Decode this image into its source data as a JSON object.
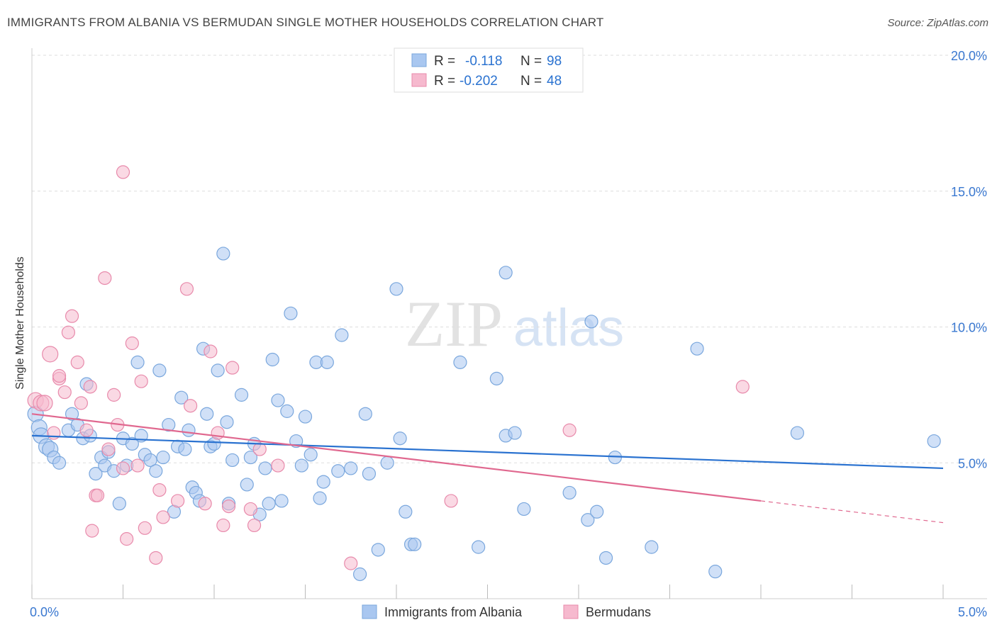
{
  "title": "IMMIGRANTS FROM ALBANIA VS BERMUDAN SINGLE MOTHER HOUSEHOLDS CORRELATION CHART",
  "source": "Source: ZipAtlas.com",
  "watermark": {
    "zip": "ZIP",
    "atlas": "atlas"
  },
  "legend_box": [
    {
      "r_label": "R =",
      "r_value": "-0.118",
      "n_label": "N =",
      "n_value": "98"
    },
    {
      "r_label": "R =",
      "r_value": "-0.202",
      "n_label": "N =",
      "n_value": "48"
    }
  ],
  "colors": {
    "blue_fill": "#a9c7f0",
    "blue_stroke": "#7aa7dd",
    "blue_line": "#2a72d0",
    "pink_fill": "#f6b9ce",
    "pink_stroke": "#e88aab",
    "pink_line": "#e0688f",
    "tick_text": "#3a78d0",
    "grid": "#dddddd"
  },
  "chart_data": {
    "type": "scatter",
    "title": "IMMIGRANTS FROM ALBANIA VS BERMUDAN SINGLE MOTHER HOUSEHOLDS CORRELATION CHART",
    "xlabel": "",
    "ylabel": "Single Mother Households",
    "xlim": [
      0,
      5
    ],
    "ylim": [
      0,
      20
    ],
    "x_tick_labels": [
      "0.0%",
      "5.0%"
    ],
    "y_ticks": [
      5,
      10,
      15,
      20
    ],
    "y_tick_labels": [
      "5.0%",
      "10.0%",
      "15.0%",
      "20.0%"
    ],
    "grid": "horizontal dashed",
    "legend_position": "bottom-center",
    "series": [
      {
        "name": "Immigrants from Albania",
        "r": -0.118,
        "n": 98,
        "trend": {
          "x": [
            0,
            5
          ],
          "y": [
            6.0,
            4.8
          ]
        },
        "points": [
          [
            0.02,
            6.8
          ],
          [
            0.04,
            6.3
          ],
          [
            0.05,
            6.0
          ],
          [
            0.08,
            5.6
          ],
          [
            0.1,
            5.5
          ],
          [
            0.12,
            5.2
          ],
          [
            0.15,
            5.0
          ],
          [
            0.2,
            6.2
          ],
          [
            0.22,
            6.8
          ],
          [
            0.25,
            6.4
          ],
          [
            0.28,
            5.9
          ],
          [
            0.3,
            7.9
          ],
          [
            0.32,
            6.0
          ],
          [
            0.35,
            4.6
          ],
          [
            0.38,
            5.2
          ],
          [
            0.4,
            4.9
          ],
          [
            0.42,
            5.4
          ],
          [
            0.45,
            4.7
          ],
          [
            0.48,
            3.5
          ],
          [
            0.5,
            5.9
          ],
          [
            0.52,
            4.9
          ],
          [
            0.55,
            5.7
          ],
          [
            0.58,
            8.7
          ],
          [
            0.6,
            6.0
          ],
          [
            0.62,
            5.3
          ],
          [
            0.65,
            5.1
          ],
          [
            0.68,
            4.7
          ],
          [
            0.7,
            8.4
          ],
          [
            0.72,
            5.2
          ],
          [
            0.75,
            6.4
          ],
          [
            0.78,
            3.2
          ],
          [
            0.8,
            5.6
          ],
          [
            0.82,
            7.4
          ],
          [
            0.84,
            5.5
          ],
          [
            0.86,
            6.2
          ],
          [
            0.88,
            4.1
          ],
          [
            0.9,
            3.9
          ],
          [
            0.92,
            3.6
          ],
          [
            0.94,
            9.2
          ],
          [
            0.96,
            6.8
          ],
          [
            0.98,
            5.6
          ],
          [
            1.0,
            5.7
          ],
          [
            1.02,
            8.4
          ],
          [
            1.05,
            12.7
          ],
          [
            1.07,
            6.5
          ],
          [
            1.08,
            3.5
          ],
          [
            1.1,
            5.1
          ],
          [
            1.15,
            7.5
          ],
          [
            1.18,
            4.2
          ],
          [
            1.2,
            5.2
          ],
          [
            1.22,
            5.7
          ],
          [
            1.25,
            3.1
          ],
          [
            1.28,
            4.8
          ],
          [
            1.3,
            3.5
          ],
          [
            1.32,
            8.8
          ],
          [
            1.35,
            7.3
          ],
          [
            1.37,
            3.6
          ],
          [
            1.4,
            6.9
          ],
          [
            1.42,
            10.5
          ],
          [
            1.45,
            5.8
          ],
          [
            1.48,
            4.9
          ],
          [
            1.5,
            6.7
          ],
          [
            1.53,
            5.3
          ],
          [
            1.56,
            8.7
          ],
          [
            1.58,
            3.7
          ],
          [
            1.6,
            4.3
          ],
          [
            1.62,
            8.7
          ],
          [
            1.68,
            4.7
          ],
          [
            1.7,
            9.7
          ],
          [
            1.75,
            4.8
          ],
          [
            1.8,
            0.9
          ],
          [
            1.83,
            6.8
          ],
          [
            1.85,
            4.6
          ],
          [
            1.9,
            1.8
          ],
          [
            1.95,
            5.0
          ],
          [
            2.0,
            11.4
          ],
          [
            2.02,
            5.9
          ],
          [
            2.05,
            3.2
          ],
          [
            2.08,
            2.0
          ],
          [
            2.1,
            2.0
          ],
          [
            2.35,
            8.7
          ],
          [
            2.45,
            1.9
          ],
          [
            2.55,
            8.1
          ],
          [
            2.6,
            12.0
          ],
          [
            2.6,
            6.0
          ],
          [
            2.65,
            6.1
          ],
          [
            2.7,
            3.3
          ],
          [
            2.95,
            3.9
          ],
          [
            3.05,
            2.9
          ],
          [
            3.07,
            10.2
          ],
          [
            3.1,
            3.2
          ],
          [
            3.15,
            1.5
          ],
          [
            3.2,
            5.2
          ],
          [
            3.4,
            1.9
          ],
          [
            3.65,
            9.2
          ],
          [
            3.75,
            1.0
          ],
          [
            4.2,
            6.1
          ],
          [
            4.95,
            5.8
          ]
        ]
      },
      {
        "name": "Bermudans",
        "r": -0.202,
        "n": 48,
        "trend": {
          "x": [
            0,
            4
          ],
          "y": [
            6.8,
            3.6
          ]
        },
        "trend_dashed": {
          "x": [
            4,
            5
          ],
          "y": [
            3.6,
            2.8
          ]
        },
        "points": [
          [
            0.02,
            7.3
          ],
          [
            0.05,
            7.2
          ],
          [
            0.07,
            7.2
          ],
          [
            0.1,
            9.0
          ],
          [
            0.12,
            6.1
          ],
          [
            0.15,
            8.1
          ],
          [
            0.15,
            8.2
          ],
          [
            0.18,
            7.6
          ],
          [
            0.2,
            9.8
          ],
          [
            0.22,
            10.4
          ],
          [
            0.25,
            8.7
          ],
          [
            0.27,
            7.2
          ],
          [
            0.3,
            6.2
          ],
          [
            0.32,
            7.8
          ],
          [
            0.33,
            2.5
          ],
          [
            0.35,
            3.8
          ],
          [
            0.36,
            3.8
          ],
          [
            0.4,
            11.8
          ],
          [
            0.42,
            5.5
          ],
          [
            0.45,
            7.5
          ],
          [
            0.47,
            6.4
          ],
          [
            0.5,
            4.8
          ],
          [
            0.5,
            15.7
          ],
          [
            0.52,
            2.2
          ],
          [
            0.55,
            9.4
          ],
          [
            0.58,
            4.9
          ],
          [
            0.6,
            8.0
          ],
          [
            0.62,
            2.6
          ],
          [
            0.68,
            1.5
          ],
          [
            0.7,
            4.0
          ],
          [
            0.72,
            3.0
          ],
          [
            0.8,
            3.6
          ],
          [
            0.85,
            11.4
          ],
          [
            0.87,
            7.1
          ],
          [
            0.95,
            3.5
          ],
          [
            0.98,
            9.1
          ],
          [
            1.02,
            6.1
          ],
          [
            1.05,
            2.7
          ],
          [
            1.08,
            3.4
          ],
          [
            1.1,
            8.5
          ],
          [
            1.2,
            3.3
          ],
          [
            1.22,
            2.7
          ],
          [
            1.25,
            5.5
          ],
          [
            1.35,
            4.9
          ],
          [
            1.75,
            1.3
          ],
          [
            2.3,
            3.6
          ],
          [
            2.95,
            6.2
          ],
          [
            3.9,
            7.8
          ]
        ]
      }
    ]
  }
}
